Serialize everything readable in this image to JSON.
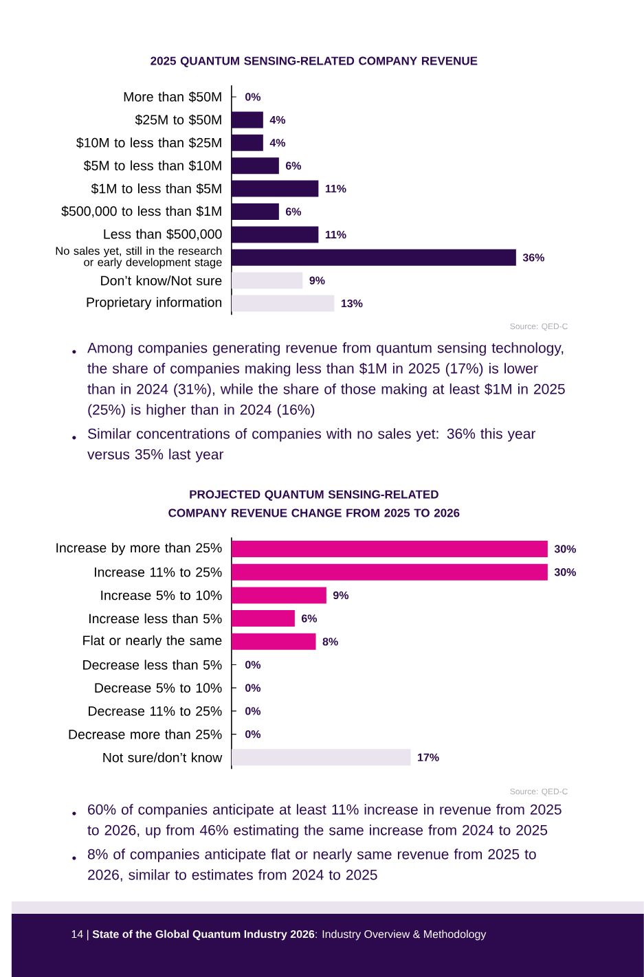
{
  "chart_data": [
    {
      "type": "bar",
      "orientation": "horizontal",
      "title": "2025 QUANTUM SENSING-RELATED COMPANY REVENUE",
      "categories": [
        "More than $50M",
        "$25M to $50M",
        "$10M to less than $25M",
        "$5M to less than $10M",
        "$1M to less than $5M",
        "$500,000 to less than $1M",
        "Less than $500,000",
        "No sales yet, still in the research or early development stage",
        "Don’t know/Not sure",
        "Proprietary information"
      ],
      "values": [
        0,
        4,
        4,
        6,
        11,
        6,
        11,
        36,
        9,
        13
      ],
      "value_labels": [
        "0%",
        "4%",
        "4%",
        "6%",
        "11%",
        "6%",
        "11%",
        "36%",
        "9%",
        "13%"
      ],
      "colors": [
        "#2d0a4e",
        "#2d0a4e",
        "#2d0a4e",
        "#2d0a4e",
        "#2d0a4e",
        "#2d0a4e",
        "#2d0a4e",
        "#2d0a4e",
        "#e9e4ee",
        "#e9e4ee"
      ],
      "annotations": [
        "Source: QED-C",
        "Among companies generating revenue from quantum sensing technology, the share of companies making less than $1M in 2025 (17%) is lower than in 2024 (31%), while the share of those making at least $1M in 2025 (25%) is higher than in 2024 (16%)",
        "Similar concentrations of companies with no sales yet: 36% this year versus 35% last year"
      ]
    },
    {
      "type": "bar",
      "orientation": "horizontal",
      "title": "PROJECTED QUANTUM SENSING-RELATED COMPANY REVENUE CHANGE FROM 2025 TO 2026",
      "categories": [
        "Increase by more than 25%",
        "Increase 11% to 25%",
        "Increase 5% to 10%",
        "Increase less than 5%",
        "Flat or nearly the same",
        "Decrease less than 5%",
        "Decrease 5% to 10%",
        "Decrease 11% to 25%",
        "Decrease more than 25%",
        "Not sure/don’t know"
      ],
      "values": [
        30,
        30,
        9,
        6,
        8,
        0,
        0,
        0,
        0,
        17
      ],
      "value_labels": [
        "30%",
        "30%",
        "9%",
        "6%",
        "8%",
        "0%",
        "0%",
        "0%",
        "0%",
        "17%"
      ],
      "colors": [
        "#e0058a",
        "#e0058a",
        "#e0058a",
        "#e0058a",
        "#e0058a",
        "#e0058a",
        "#e0058a",
        "#e0058a",
        "#e0058a",
        "#e9e4ee"
      ],
      "annotations": [
        "Source: QED-C",
        "60% of companies anticipate at least 11% increase in revenue from 2025 to 2026, up from 46% estimating the same increase from 2024 to 2025",
        "8% of companies anticipate flat or nearly same revenue from 2025 to 2026, similar to estimates from 2024 to 2025",
        "14 | **State of the Global Quantum Industry 2026**: Industry Overview & Methodology"
      ]
    }
  ]
}
